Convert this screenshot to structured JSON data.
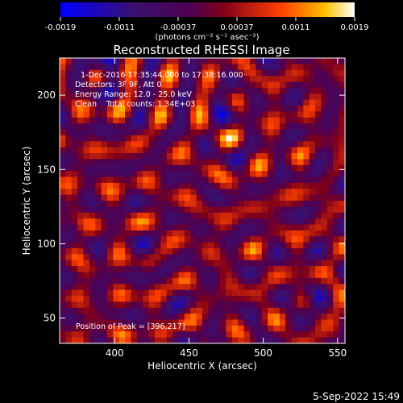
{
  "chart_data": {
    "type": "heatmap",
    "title": "Reconstructed RHESSI Image",
    "xlabel": "Heliocentric X (arcsec)",
    "ylabel": "Heliocentric Y (arcsec)",
    "xlim": [
      363,
      555
    ],
    "ylim": [
      33,
      225
    ],
    "x_ticks": [
      "400",
      "450",
      "500",
      "550"
    ],
    "y_ticks": [
      "50",
      "100",
      "150",
      "200"
    ],
    "x_tick_values": [
      400,
      450,
      500,
      550
    ],
    "y_tick_values": [
      50,
      100,
      150,
      200
    ],
    "colorbar": {
      "label": "(photons cm⁻² s⁻¹ asec⁻²)",
      "ticks": [
        "-0.0019",
        "-0.0011",
        "-0.00037",
        "0.00037",
        "0.0011",
        "0.0019"
      ],
      "range": [
        -0.0019,
        0.0019
      ]
    },
    "annotations": [
      "1-Dec-2016 17:35:44.000 to 17:38:16.000",
      "Detectors: 3F 9F, Att 0",
      "Energy Range: 12.0 - 25.0 keV",
      "Clean    Total counts: 1.34E+03"
    ],
    "peak_label": "Position of Peak = [396,217]",
    "peak": [
      396,
      217
    ],
    "grid": false
  },
  "timestamp": "5-Sep-2022 15:49"
}
